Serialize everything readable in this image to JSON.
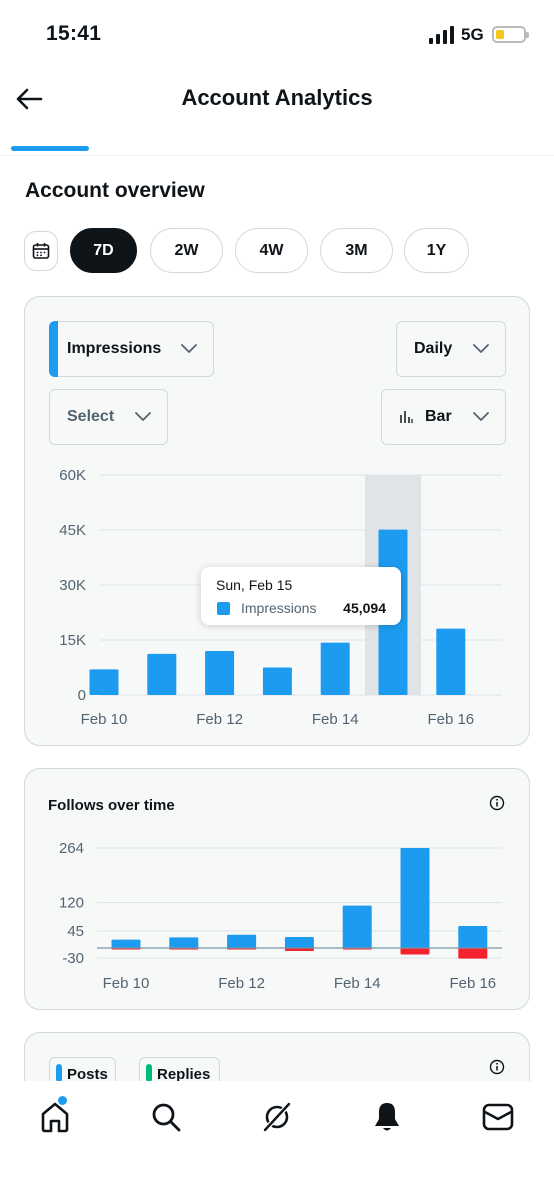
{
  "status_bar": {
    "time": "15:41",
    "network": "5G"
  },
  "header": {
    "title": "Account Analytics"
  },
  "overview": {
    "title": "Account overview",
    "ranges": [
      "7D",
      "2W",
      "4W",
      "3M",
      "1Y"
    ],
    "selected_range": "7D"
  },
  "impressions_card": {
    "metric_label": "Impressions",
    "interval_label": "Daily",
    "compare_label": "Select",
    "chart_type_label": "Bar",
    "tooltip": {
      "date": "Sun, Feb 15",
      "series": "Impressions",
      "value": "45,094"
    }
  },
  "follows_card": {
    "title": "Follows over time"
  },
  "engagement_card": {
    "legend": [
      "Posts",
      "Replies"
    ]
  },
  "bottom_nav": [
    "home-icon",
    "search-icon",
    "grok-icon",
    "notifications-icon",
    "messages-icon"
  ],
  "colors": {
    "accent": "#1d9bf0",
    "negative": "#f4212e",
    "dark": "#0f1419"
  },
  "chart_data": [
    {
      "type": "bar",
      "title": "",
      "categories": [
        "Feb 10",
        "Feb 11",
        "Feb 12",
        "Feb 13",
        "Feb 14",
        "Feb 15",
        "Feb 16"
      ],
      "x_tick_labels": [
        "Feb 10",
        "Feb 12",
        "Feb 14",
        "Feb 16"
      ],
      "y_tick_labels": [
        "60K",
        "45K",
        "30K",
        "15K",
        "0"
      ],
      "y_ticks": [
        60000,
        45000,
        30000,
        15000,
        0
      ],
      "ylim": [
        0,
        60000
      ],
      "series": [
        {
          "name": "Impressions",
          "values": [
            7000,
            11200,
            12000,
            7500,
            14300,
            45094,
            18100
          ]
        }
      ],
      "highlighted_category": "Feb 15",
      "grid": true
    },
    {
      "type": "bar",
      "title": "Follows over time",
      "categories": [
        "Feb 10",
        "Feb 11",
        "Feb 12",
        "Feb 13",
        "Feb 14",
        "Feb 15",
        "Feb 16"
      ],
      "x_tick_labels": [
        "Feb 10",
        "Feb 12",
        "Feb 14",
        "Feb 16"
      ],
      "y_tick_labels": [
        "264",
        "120",
        "45",
        "-30"
      ],
      "y_ticks": [
        264,
        120,
        45,
        -30
      ],
      "ylim": [
        -30,
        264
      ],
      "series": [
        {
          "values": [
            22,
            28,
            35,
            29,
            112,
            264,
            58
          ]
        },
        {
          "values": [
            -3,
            -1,
            -1,
            -8,
            -2,
            -17,
            -28
          ]
        }
      ],
      "grid": true
    }
  ]
}
